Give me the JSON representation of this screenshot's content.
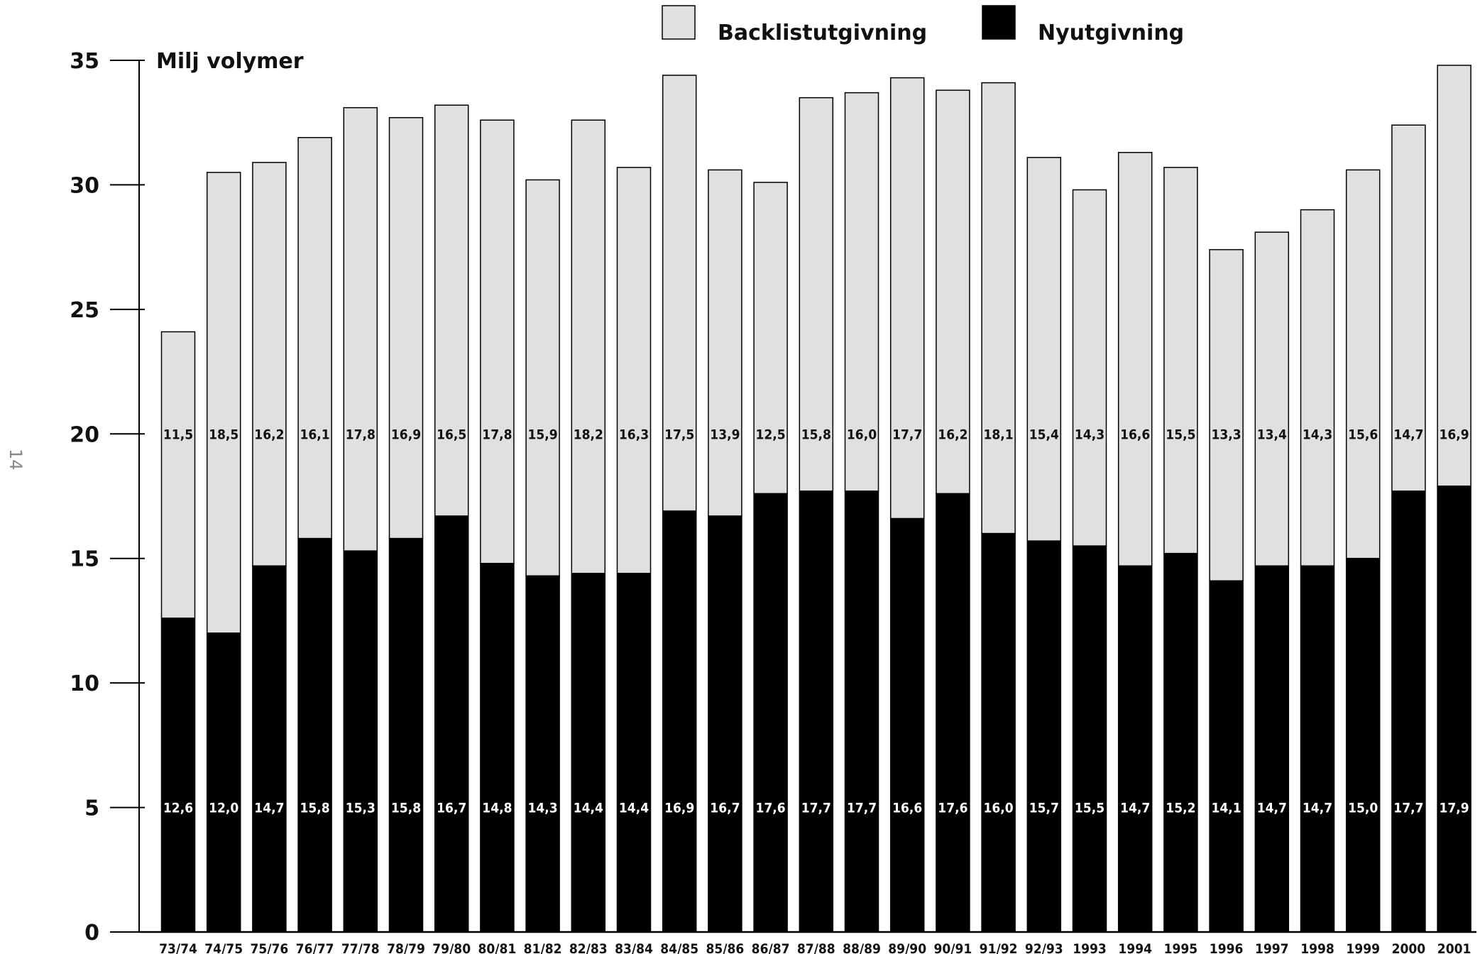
{
  "page_number": "14",
  "chart_data": {
    "type": "bar",
    "stacked": true,
    "ylabel": "Milj volymer",
    "ylim": [
      0,
      35
    ],
    "yticks": [
      0,
      5,
      10,
      15,
      20,
      25,
      30,
      35
    ],
    "legend_position": "top-right",
    "categories": [
      "73/74",
      "74/75",
      "75/76",
      "76/77",
      "77/78",
      "78/79",
      "79/80",
      "80/81",
      "81/82",
      "82/83",
      "83/84",
      "84/85",
      "85/86",
      "86/87",
      "87/88",
      "88/89",
      "89/90",
      "90/91",
      "91/92",
      "92/93",
      "1993",
      "1994",
      "1995",
      "1996",
      "1997",
      "1998",
      "1999",
      "2000",
      "2001"
    ],
    "series": [
      {
        "name": "Nyutgivning",
        "color": "#000000",
        "label_color": "#ffffff",
        "values": [
          12.6,
          12.0,
          14.7,
          15.8,
          15.3,
          15.8,
          16.7,
          14.8,
          14.3,
          14.4,
          14.4,
          16.9,
          16.7,
          17.6,
          17.7,
          17.7,
          16.6,
          17.6,
          16.0,
          15.7,
          15.5,
          14.7,
          15.2,
          14.1,
          14.7,
          14.7,
          15.0,
          17.7,
          17.9
        ],
        "labels": [
          "12,6",
          "12,0",
          "14,7",
          "15,8",
          "15,3",
          "15,8",
          "16,7",
          "14,8",
          "14,3",
          "14,4",
          "14,4",
          "16,9",
          "16,7",
          "17,6",
          "17,7",
          "17,7",
          "16,6",
          "17,6",
          "16,0",
          "15,7",
          "15,5",
          "14,7",
          "15,2",
          "14,1",
          "14,7",
          "14,7",
          "15,0",
          "17,7",
          "17,9"
        ]
      },
      {
        "name": "Backlistutgivning",
        "color": "#e0e0e0",
        "label_color": "#111111",
        "values": [
          11.5,
          18.5,
          16.2,
          16.1,
          17.8,
          16.9,
          16.5,
          17.8,
          15.9,
          18.2,
          16.3,
          17.5,
          13.9,
          12.5,
          15.8,
          16.0,
          17.7,
          16.2,
          18.1,
          15.4,
          14.3,
          16.6,
          15.5,
          13.3,
          13.4,
          14.3,
          15.6,
          14.7,
          16.9
        ],
        "labels": [
          "11,5",
          "18,5",
          "16,2",
          "16,1",
          "17,8",
          "16,9",
          "16,5",
          "17,8",
          "15,9",
          "18,2",
          "16,3",
          "17,5",
          "13,9",
          "12,5",
          "15,8",
          "16,0",
          "17,7",
          "16,2",
          "18,1",
          "15,4",
          "14,3",
          "16,6",
          "15,5",
          "13,3",
          "13,4",
          "14,3",
          "15,6",
          "14,7",
          "16,9"
        ]
      }
    ]
  }
}
